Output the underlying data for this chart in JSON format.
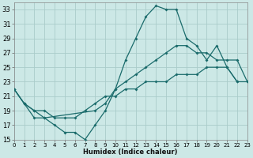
{
  "xlabel": "Humidex (Indice chaleur)",
  "bg_color": "#cce8e6",
  "grid_color": "#aaccca",
  "line_color": "#1a6b6b",
  "xlim": [
    0,
    23
  ],
  "ylim": [
    15,
    34
  ],
  "xticks": [
    0,
    1,
    2,
    3,
    4,
    5,
    6,
    7,
    8,
    9,
    10,
    11,
    12,
    13,
    14,
    15,
    16,
    17,
    18,
    19,
    20,
    21,
    22,
    23
  ],
  "yticks": [
    15,
    17,
    19,
    21,
    23,
    25,
    27,
    29,
    31,
    33
  ],
  "curve1_x": [
    0,
    1,
    2,
    3,
    4,
    5,
    6,
    7,
    8,
    9,
    10,
    11,
    12,
    13,
    14,
    15,
    16,
    17,
    18,
    19,
    20,
    21,
    22
  ],
  "curve1_y": [
    22,
    20,
    18,
    18,
    17,
    16,
    16,
    15,
    17,
    19,
    22,
    26,
    29,
    32,
    33.5,
    33,
    33,
    29,
    28,
    26,
    28,
    25,
    23
  ],
  "curve2_x": [
    0,
    1,
    2,
    3,
    8,
    9,
    10,
    11,
    12,
    13,
    14,
    15,
    16,
    17,
    18,
    19,
    20,
    21,
    22,
    23
  ],
  "curve2_y": [
    22,
    20,
    19,
    18,
    19,
    20,
    22,
    23,
    24,
    25,
    26,
    27,
    28,
    28,
    27,
    27,
    26,
    26,
    26,
    23
  ],
  "curve3_x": [
    0,
    1,
    2,
    3,
    4,
    5,
    6,
    7,
    8,
    9,
    10,
    11,
    12,
    13,
    14,
    15,
    16,
    17,
    18,
    19,
    20,
    21,
    22,
    23
  ],
  "curve3_y": [
    22,
    20,
    19,
    19,
    18,
    18,
    18,
    19,
    20,
    21,
    21,
    22,
    22,
    23,
    23,
    23,
    24,
    24,
    24,
    25,
    25,
    25,
    23,
    23
  ]
}
